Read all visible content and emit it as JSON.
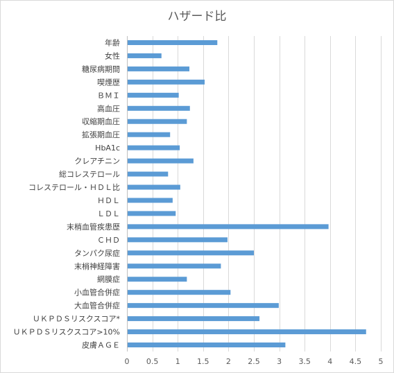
{
  "chart_data": {
    "type": "bar",
    "orientation": "horizontal",
    "title": "ハザード比",
    "xlabel": "",
    "ylabel": "",
    "xlim": [
      0,
      5
    ],
    "xticks": [
      0,
      0.5,
      1,
      1.5,
      2,
      2.5,
      3,
      3.5,
      4,
      4.5,
      5
    ],
    "xtick_labels": [
      "0",
      "0.5",
      "1",
      "1.5",
      "2",
      "2.5",
      "3",
      "3.5",
      "4",
      "4.5",
      "5"
    ],
    "grid": true,
    "legend": "none",
    "bar_color": "#5b9bd5",
    "categories": [
      "年齢",
      "女性",
      "糖尿病期間",
      "喫煙歴",
      "ＢＭＩ",
      "高血圧",
      "収縮期血圧",
      "拡張期血圧",
      "HbA1c",
      "クレアチニン",
      "総コレステロール",
      "コレステロール・ＨＤＬ比",
      "ＨＤＬ",
      "ＬＤＬ",
      "末梢血管疾患歴",
      "ＣＨＤ",
      "タンパク尿症",
      "末梢神経障害",
      "網膜症",
      "小血管合併症",
      "大血管合併症",
      "ＵＫＰＤＳリスクスコア*",
      "ＵＫＰＤＳリスクスコア>10%",
      "皮膚ＡＧＥ"
    ],
    "values": [
      1.78,
      0.68,
      1.23,
      1.53,
      1.02,
      1.24,
      1.18,
      0.85,
      1.04,
      1.31,
      0.81,
      1.05,
      0.9,
      0.96,
      3.97,
      1.98,
      2.5,
      1.85,
      1.18,
      2.04,
      2.99,
      2.61,
      4.71,
      3.12
    ]
  }
}
